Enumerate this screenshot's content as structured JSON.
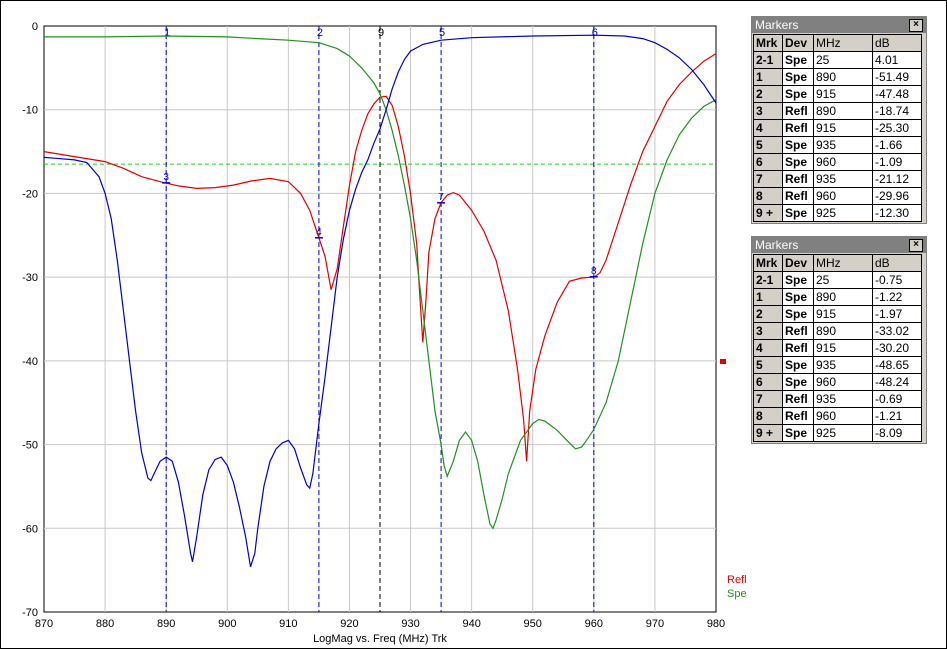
{
  "chart_data": {
    "type": "line",
    "xlabel": "LogMag vs. Freq (MHz)  Trk",
    "xlim": [
      870,
      980
    ],
    "ylim": [
      -70,
      0
    ],
    "x_ticks": [
      "870",
      "880",
      "890",
      "900",
      "910",
      "920",
      "930",
      "940",
      "950",
      "960",
      "970",
      "980"
    ],
    "y_ticks": [
      "0",
      "-10",
      "-20",
      "-30",
      "-40",
      "-50",
      "-60",
      "-70"
    ],
    "grid": true,
    "reference_line_db": -16.5,
    "legend": [
      "Refl",
      "Spe"
    ],
    "series": [
      {
        "name": "Refl",
        "color": "#e00000",
        "points": [
          [
            870,
            -15
          ],
          [
            875,
            -15.6
          ],
          [
            880,
            -16.2
          ],
          [
            883,
            -17
          ],
          [
            886,
            -18
          ],
          [
            889,
            -18.6
          ],
          [
            892,
            -19.1
          ],
          [
            895,
            -19.4
          ],
          [
            898,
            -19.3
          ],
          [
            901,
            -19
          ],
          [
            904,
            -18.5
          ],
          [
            907,
            -18.2
          ],
          [
            910,
            -18.6
          ],
          [
            912,
            -20
          ],
          [
            913.5,
            -22
          ],
          [
            915,
            -25.3
          ],
          [
            916,
            -27.5
          ],
          [
            917,
            -31.5
          ],
          [
            918,
            -29
          ],
          [
            919,
            -24
          ],
          [
            920,
            -19
          ],
          [
            921,
            -15
          ],
          [
            922,
            -12.5
          ],
          [
            923,
            -10.5
          ],
          [
            924,
            -9.3
          ],
          [
            925,
            -8.5
          ],
          [
            926,
            -8.4
          ],
          [
            927,
            -9.5
          ],
          [
            928,
            -12
          ],
          [
            929,
            -15.5
          ],
          [
            930,
            -20
          ],
          [
            931,
            -26
          ],
          [
            931.5,
            -32
          ],
          [
            932,
            -37.8
          ],
          [
            932.5,
            -33
          ],
          [
            933,
            -27
          ],
          [
            934,
            -23
          ],
          [
            935,
            -21.1
          ],
          [
            936,
            -20.2
          ],
          [
            937,
            -19.9
          ],
          [
            938,
            -20.2
          ],
          [
            940,
            -22
          ],
          [
            942,
            -24.5
          ],
          [
            944,
            -28
          ],
          [
            946,
            -34
          ],
          [
            947.5,
            -41
          ],
          [
            948.5,
            -47
          ],
          [
            949,
            -52
          ],
          [
            949.5,
            -46
          ],
          [
            950.5,
            -41
          ],
          [
            952,
            -37
          ],
          [
            954,
            -33
          ],
          [
            956,
            -30.5
          ],
          [
            958,
            -30.1
          ],
          [
            960,
            -30
          ],
          [
            961,
            -29.5
          ],
          [
            962,
            -28
          ],
          [
            964,
            -23.5
          ],
          [
            966,
            -19
          ],
          [
            968,
            -15
          ],
          [
            970,
            -12
          ],
          [
            972,
            -9
          ],
          [
            974,
            -7
          ],
          [
            976,
            -5.5
          ],
          [
            978,
            -4.2
          ],
          [
            980,
            -3.3
          ]
        ]
      },
      {
        "name": "Spe",
        "color": "#209020",
        "points": [
          [
            870,
            -1.3
          ],
          [
            880,
            -1.3
          ],
          [
            890,
            -1.2
          ],
          [
            900,
            -1.3
          ],
          [
            905,
            -1.5
          ],
          [
            910,
            -1.7
          ],
          [
            915,
            -2
          ],
          [
            918,
            -2.7
          ],
          [
            920,
            -3.6
          ],
          [
            922,
            -5
          ],
          [
            924,
            -6.8
          ],
          [
            925,
            -8.1
          ],
          [
            926,
            -10
          ],
          [
            927,
            -12.5
          ],
          [
            928,
            -15.5
          ],
          [
            929,
            -19
          ],
          [
            930,
            -23
          ],
          [
            931,
            -28
          ],
          [
            932,
            -34
          ],
          [
            933,
            -40
          ],
          [
            934,
            -46
          ],
          [
            935,
            -50
          ],
          [
            935.5,
            -52.5
          ],
          [
            936,
            -53.8
          ],
          [
            937,
            -52
          ],
          [
            938,
            -49.5
          ],
          [
            939,
            -48.5
          ],
          [
            940,
            -49.5
          ],
          [
            941,
            -52
          ],
          [
            942,
            -56
          ],
          [
            943,
            -59.5
          ],
          [
            943.5,
            -60
          ],
          [
            944,
            -59
          ],
          [
            945,
            -56.5
          ],
          [
            946,
            -53.5
          ],
          [
            948,
            -49.5
          ],
          [
            950,
            -47.5
          ],
          [
            951,
            -47
          ],
          [
            952,
            -47.2
          ],
          [
            954,
            -48.3
          ],
          [
            956,
            -49.8
          ],
          [
            957,
            -50.5
          ],
          [
            958,
            -50.3
          ],
          [
            959,
            -49.3
          ],
          [
            960,
            -48.2
          ],
          [
            962,
            -45
          ],
          [
            964,
            -40
          ],
          [
            966,
            -33
          ],
          [
            968,
            -26
          ],
          [
            970,
            -20
          ],
          [
            972,
            -16
          ],
          [
            974,
            -13
          ],
          [
            976,
            -11
          ],
          [
            978,
            -9.6
          ],
          [
            980,
            -8.8
          ]
        ]
      },
      {
        "name": "",
        "color": "#0000cc",
        "points": [
          [
            870,
            -15.7
          ],
          [
            872,
            -15.8
          ],
          [
            875,
            -16
          ],
          [
            877,
            -16.3
          ],
          [
            879,
            -18
          ],
          [
            880,
            -20
          ],
          [
            881,
            -23
          ],
          [
            882,
            -28
          ],
          [
            883,
            -34
          ],
          [
            884,
            -40
          ],
          [
            885,
            -46
          ],
          [
            886,
            -51
          ],
          [
            887,
            -54
          ],
          [
            887.5,
            -54.3
          ],
          [
            888,
            -53.5
          ],
          [
            889,
            -52
          ],
          [
            890,
            -51.5
          ],
          [
            891,
            -52
          ],
          [
            892,
            -54.5
          ],
          [
            893,
            -58.5
          ],
          [
            894,
            -63
          ],
          [
            894.3,
            -64
          ],
          [
            895,
            -61
          ],
          [
            896,
            -56
          ],
          [
            897,
            -53
          ],
          [
            898,
            -51.8
          ],
          [
            899,
            -51.5
          ],
          [
            900,
            -52.5
          ],
          [
            901,
            -54.5
          ],
          [
            902,
            -57.5
          ],
          [
            903,
            -61
          ],
          [
            903.8,
            -64.6
          ],
          [
            904.5,
            -63
          ],
          [
            905,
            -60
          ],
          [
            906,
            -55
          ],
          [
            907,
            -52
          ],
          [
            908,
            -50.5
          ],
          [
            909,
            -49.8
          ],
          [
            910,
            -49.5
          ],
          [
            911,
            -50.5
          ],
          [
            912,
            -52.8
          ],
          [
            913,
            -54.8
          ],
          [
            913.5,
            -55.2
          ],
          [
            914,
            -53.5
          ],
          [
            915,
            -47.5
          ],
          [
            916,
            -42
          ],
          [
            917,
            -36
          ],
          [
            918,
            -30
          ],
          [
            919,
            -25.5
          ],
          [
            920,
            -22
          ],
          [
            921,
            -19.5
          ],
          [
            922,
            -17.5
          ],
          [
            923,
            -16
          ],
          [
            924,
            -14
          ],
          [
            925,
            -12.3
          ],
          [
            926,
            -10
          ],
          [
            927,
            -7.5
          ],
          [
            928,
            -5.5
          ],
          [
            929,
            -4
          ],
          [
            930,
            -3
          ],
          [
            932,
            -2.2
          ],
          [
            935,
            -1.7
          ],
          [
            940,
            -1.4
          ],
          [
            950,
            -1.2
          ],
          [
            960,
            -1.1
          ],
          [
            965,
            -1.2
          ],
          [
            968,
            -1.5
          ],
          [
            970,
            -2
          ],
          [
            972,
            -2.8
          ],
          [
            974,
            -3.8
          ],
          [
            976,
            -5.2
          ],
          [
            978,
            -7
          ],
          [
            980,
            -9.2
          ]
        ]
      }
    ],
    "markers": [
      {
        "label": "1",
        "x": 890
      },
      {
        "label": "2",
        "x": 915
      },
      {
        "label": "9",
        "x": 925
      },
      {
        "label": "5",
        "x": 935
      },
      {
        "label": "6",
        "x": 960
      }
    ],
    "curve_markers": [
      {
        "label": "3",
        "x": 890,
        "y": -18.74
      },
      {
        "label": "4",
        "x": 915,
        "y": -25.3
      },
      {
        "label": "7",
        "x": 935,
        "y": -21.12
      },
      {
        "label": "8",
        "x": 960,
        "y": -29.96
      }
    ]
  },
  "marker_panels": [
    {
      "title": "Markers",
      "headers": [
        "Mrk",
        "Dev",
        "MHz",
        "dB"
      ],
      "rows": [
        [
          "2-1",
          "Spe",
          "25",
          "4.01"
        ],
        [
          "1",
          "Spe",
          "890",
          "-51.49"
        ],
        [
          "2",
          "Spe",
          "915",
          "-47.48"
        ],
        [
          "3",
          "Refl",
          "890",
          "-18.74"
        ],
        [
          "4",
          "Refl",
          "915",
          "-25.30"
        ],
        [
          "5",
          "Spe",
          "935",
          "-1.66"
        ],
        [
          "6",
          "Spe",
          "960",
          "-1.09"
        ],
        [
          "7",
          "Refl",
          "935",
          "-21.12"
        ],
        [
          "8",
          "Refl",
          "960",
          "-29.96"
        ],
        [
          "9 +",
          "Spe",
          "925",
          "-12.30"
        ]
      ]
    },
    {
      "title": "Markers",
      "headers": [
        "Mrk",
        "Dev",
        "MHz",
        "dB"
      ],
      "rows": [
        [
          "2-1",
          "Spe",
          "25",
          "-0.75"
        ],
        [
          "1",
          "Spe",
          "890",
          "-1.22"
        ],
        [
          "2",
          "Spe",
          "915",
          "-1.97"
        ],
        [
          "3",
          "Refl",
          "890",
          "-33.02"
        ],
        [
          "4",
          "Refl",
          "915",
          "-30.20"
        ],
        [
          "5",
          "Spe",
          "935",
          "-48.65"
        ],
        [
          "6",
          "Spe",
          "960",
          "-48.24"
        ],
        [
          "7",
          "Refl",
          "935",
          "-0.69"
        ],
        [
          "8",
          "Refl",
          "960",
          "-1.21"
        ],
        [
          "9 +",
          "Spe",
          "925",
          "-8.09"
        ]
      ]
    }
  ],
  "close_glyph": "×"
}
